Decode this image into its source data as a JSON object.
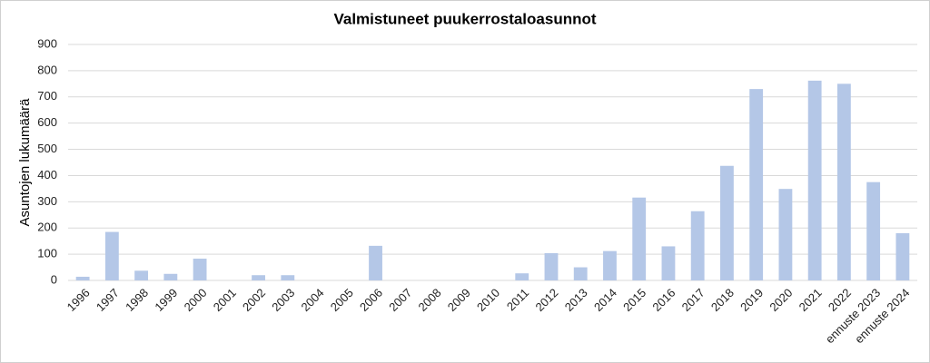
{
  "chart_data": {
    "type": "bar",
    "title": "Valmistuneet puukerrostaloasunnot",
    "y_label": "Asuntojen lukumäärä",
    "categories": [
      "1996",
      "1997",
      "1998",
      "1999",
      "2000",
      "2001",
      "2002",
      "2003",
      "2004",
      "2005",
      "2006",
      "2007",
      "2008",
      "2009",
      "2010",
      "2011",
      "2012",
      "2013",
      "2014",
      "2015",
      "2016",
      "2017",
      "2018",
      "2019",
      "2020",
      "2021",
      "2022",
      "ennuste 2023",
      "ennuste 2024"
    ],
    "values": [
      14,
      185,
      37,
      25,
      83,
      0,
      20,
      20,
      0,
      0,
      132,
      0,
      0,
      0,
      0,
      27,
      104,
      50,
      112,
      316,
      130,
      264,
      437,
      730,
      349,
      762,
      750,
      375,
      180
    ],
    "color": "#b4c7e7",
    "ylim": [
      0,
      900
    ],
    "yticks": [
      0,
      100,
      200,
      300,
      400,
      500,
      600,
      700,
      800,
      900
    ],
    "grid": true
  }
}
